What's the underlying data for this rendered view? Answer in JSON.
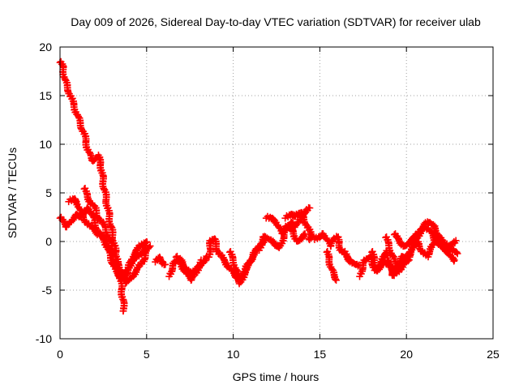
{
  "chart_data": {
    "type": "scatter",
    "title": "Day 009 of 2026, Sidereal Day-to-day VTEC variation (SDTVAR) for receiver ulab",
    "xlabel": "GPS time / hours",
    "ylabel": "SDTVAR / TECUs",
    "xlim": [
      0,
      25
    ],
    "ylim": [
      -10,
      20
    ],
    "xticks": [
      0,
      5,
      10,
      15,
      20,
      25
    ],
    "yticks": [
      -10,
      -5,
      0,
      5,
      10,
      15,
      20
    ],
    "grid": true,
    "marker": "plus",
    "series": [
      {
        "name": "SDTVAR",
        "color": "#ff0000",
        "traces": [
          {
            "x": [
              0.0,
              0.15,
              0.3,
              0.5,
              0.8,
              1.1,
              1.4,
              1.6,
              1.8,
              2.0,
              2.2,
              2.35,
              2.5,
              2.7,
              2.9,
              3.1,
              3.3,
              3.5,
              3.6,
              3.7
            ],
            "y": [
              18.5,
              18.0,
              16.5,
              15.5,
              14.0,
              12.5,
              11.0,
              9.5,
              8.5,
              8.3,
              8.8,
              8.0,
              6.0,
              4.0,
              2.0,
              0.0,
              -2.0,
              -4.0,
              -5.5,
              -7.2
            ]
          },
          {
            "x": [
              0.0,
              0.2,
              0.4,
              0.6,
              0.8,
              1.0,
              1.2,
              1.4,
              1.6,
              1.8,
              2.0,
              2.2,
              2.4,
              2.6,
              2.8,
              3.0,
              3.2,
              3.4,
              3.6,
              3.8,
              4.0,
              4.2,
              4.4,
              4.6,
              4.8,
              5.0
            ],
            "y": [
              2.5,
              2.0,
              1.5,
              2.0,
              2.5,
              2.8,
              2.5,
              3.0,
              3.5,
              3.0,
              2.0,
              1.0,
              0.5,
              0.0,
              -1.0,
              -2.0,
              -3.0,
              -3.5,
              -3.8,
              -3.5,
              -2.5,
              -1.5,
              -1.0,
              -0.5,
              -0.2,
              0.0
            ]
          },
          {
            "x": [
              0.5,
              0.8,
              1.0,
              1.2,
              1.5,
              1.8,
              2.0,
              2.2,
              2.5,
              2.8,
              3.0,
              3.2,
              3.4,
              3.6,
              3.8,
              4.0,
              4.2,
              4.5,
              4.8,
              5.0
            ],
            "y": [
              4.2,
              4.4,
              4.0,
              3.0,
              2.0,
              1.5,
              1.2,
              0.8,
              0.5,
              -0.5,
              -1.5,
              -2.5,
              -3.0,
              -3.5,
              -3.2,
              -2.5,
              -2.0,
              -1.5,
              -1.0,
              -0.5
            ]
          },
          {
            "x": [
              1.4,
              1.6,
              1.8,
              2.0,
              2.2,
              2.4,
              2.6,
              2.8,
              3.0,
              3.2,
              3.4,
              3.6,
              3.8,
              4.0,
              4.2,
              4.4,
              4.6,
              4.8,
              5.0,
              5.2
            ],
            "y": [
              5.5,
              4.5,
              4.0,
              3.5,
              2.5,
              2.0,
              1.5,
              0.5,
              -0.5,
              -1.5,
              -2.5,
              -3.5,
              -4.2,
              -4.0,
              -3.5,
              -3.0,
              -2.5,
              -2.0,
              -1.0,
              -0.5
            ]
          },
          {
            "x": [
              5.5,
              5.7,
              5.9,
              6.1
            ],
            "y": [
              -2.0,
              -1.6,
              -2.1,
              -2.4
            ]
          },
          {
            "x": [
              6.3,
              6.6,
              6.9,
              7.2,
              7.5,
              7.8,
              8.1,
              8.3,
              8.5
            ],
            "y": [
              -3.5,
              -2.2,
              -1.8,
              -2.6,
              -3.2,
              -3.0,
              -2.5,
              -2.0,
              -1.5
            ]
          },
          {
            "x": [
              6.7,
              7.0,
              7.3,
              7.6,
              7.9,
              8.2
            ],
            "y": [
              -1.5,
              -2.4,
              -3.3,
              -4.0,
              -3.0,
              -2.0
            ]
          },
          {
            "x": [
              8.6,
              8.7,
              8.9,
              9.1,
              9.3,
              9.5,
              9.7,
              9.9,
              10.1,
              10.3,
              10.5,
              10.7,
              10.9,
              11.1,
              11.3,
              11.5,
              11.7,
              11.9
            ],
            "y": [
              -1.5,
              0.0,
              0.3,
              -1.0,
              -1.5,
              -2.0,
              -2.5,
              -3.0,
              -3.5,
              -3.8,
              -3.5,
              -3.0,
              -2.5,
              -1.5,
              -1.0,
              -0.5,
              0.0,
              0.5
            ]
          },
          {
            "x": [
              9.8,
              10.0,
              10.2,
              10.4,
              10.6,
              10.8,
              11.0,
              11.2
            ],
            "y": [
              -1.0,
              -2.0,
              -3.0,
              -4.3,
              -3.5,
              -2.5,
              -2.0,
              -1.2
            ]
          },
          {
            "x": [
              11.5,
              11.8,
              12.1,
              12.4,
              12.7,
              13.0,
              13.3,
              13.6,
              13.9,
              14.2,
              14.4
            ],
            "y": [
              -0.8,
              0.5,
              0.2,
              -0.3,
              -0.6,
              1.0,
              2.0,
              1.5,
              2.5,
              3.0,
              3.5
            ]
          },
          {
            "x": [
              11.9,
              12.2,
              12.5,
              12.8,
              13.1,
              13.4,
              13.7,
              14.0,
              14.2
            ],
            "y": [
              2.5,
              2.4,
              2.0,
              0.8,
              1.6,
              1.2,
              0.0,
              0.5,
              0.8
            ]
          },
          {
            "x": [
              13.0,
              13.3,
              13.6,
              13.9,
              14.1,
              14.3,
              14.5,
              14.6,
              14.4
            ],
            "y": [
              2.5,
              2.8,
              2.6,
              3.0,
              2.2,
              1.5,
              0.6,
              0.5,
              0.2
            ]
          },
          {
            "x": [
              14.7,
              15.0,
              15.2,
              15.4,
              15.6,
              15.8,
              16.0,
              16.2,
              16.5
            ],
            "y": [
              0.3,
              0.5,
              0.8,
              0.3,
              -0.5,
              0.2,
              0.5,
              -0.8,
              -1.5
            ]
          },
          {
            "x": [
              15.4,
              15.6,
              15.8,
              16.0
            ],
            "y": [
              -1.0,
              -2.3,
              -3.5,
              -4.0
            ]
          },
          {
            "x": [
              16.4,
              16.6,
              16.8,
              17.0,
              17.2
            ],
            "y": [
              -1.0,
              -1.8,
              -2.0,
              -2.3,
              -2.5
            ]
          },
          {
            "x": [
              17.3,
              17.6,
              17.9,
              18.2,
              18.5,
              18.8,
              19.0,
              19.2,
              19.5,
              19.8,
              20.1
            ],
            "y": [
              -3.5,
              -2.0,
              -1.5,
              -3.0,
              -2.5,
              -1.0,
              -2.0,
              -3.5,
              -2.5,
              -1.5,
              -2.0
            ]
          },
          {
            "x": [
              18.0,
              18.3,
              18.7,
              19.0,
              19.3,
              19.7,
              20.0
            ],
            "y": [
              -1.0,
              -3.0,
              -2.0,
              -2.5,
              -3.5,
              -2.5,
              -2.0
            ]
          },
          {
            "x": [
              18.8,
              19.0,
              19.3,
              19.6,
              19.9,
              20.2,
              20.5,
              20.8,
              21.1,
              21.4,
              21.7,
              22.0,
              22.3,
              22.6,
              22.9
            ],
            "y": [
              0.5,
              -0.5,
              -2.0,
              -3.0,
              -2.0,
              -1.0,
              0.0,
              1.0,
              1.5,
              1.0,
              0.0,
              -0.5,
              -1.0,
              -0.8,
              -1.2
            ]
          },
          {
            "x": [
              20.0,
              20.3,
              20.6,
              20.9,
              21.2,
              21.5,
              21.8,
              22.1,
              22.4,
              22.7,
              22.9
            ],
            "y": [
              -2.0,
              -1.0,
              0.0,
              -1.0,
              -1.5,
              -0.5,
              0.5,
              0.0,
              -0.5,
              -0.2,
              0.0
            ]
          },
          {
            "x": [
              19.3,
              19.6,
              19.9,
              20.2,
              20.5,
              20.8,
              21.1,
              21.3,
              21.6,
              21.9,
              22.2,
              22.5,
              22.8
            ],
            "y": [
              0.8,
              0.0,
              -0.5,
              0.0,
              0.5,
              1.2,
              1.8,
              2.0,
              1.5,
              0.5,
              -0.5,
              -1.5,
              -2.0
            ]
          }
        ]
      }
    ]
  }
}
